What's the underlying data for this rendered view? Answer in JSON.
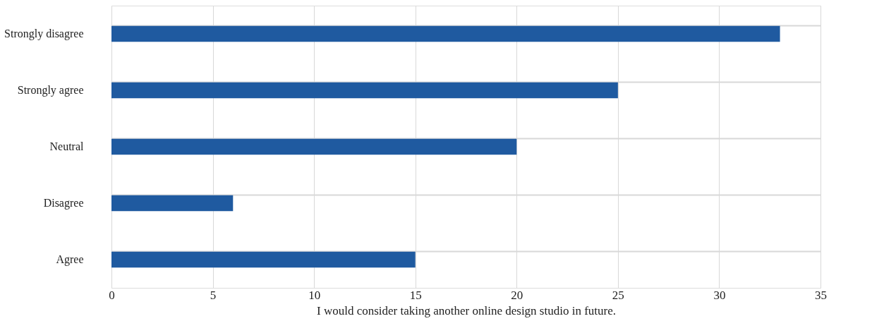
{
  "chart_data": {
    "type": "bar",
    "orientation": "horizontal",
    "categories": [
      "Strongly disagree",
      "Strongly agree",
      "Neutral",
      "Disagree",
      "Agree"
    ],
    "values": [
      33,
      25,
      20,
      6,
      15
    ],
    "color": "#1f5aa0",
    "xlim": [
      0,
      35
    ],
    "xticks": [
      0,
      5,
      10,
      15,
      20,
      25,
      30,
      35
    ],
    "xlabel": "I would consider taking another online design studio in future.",
    "grid": true
  }
}
